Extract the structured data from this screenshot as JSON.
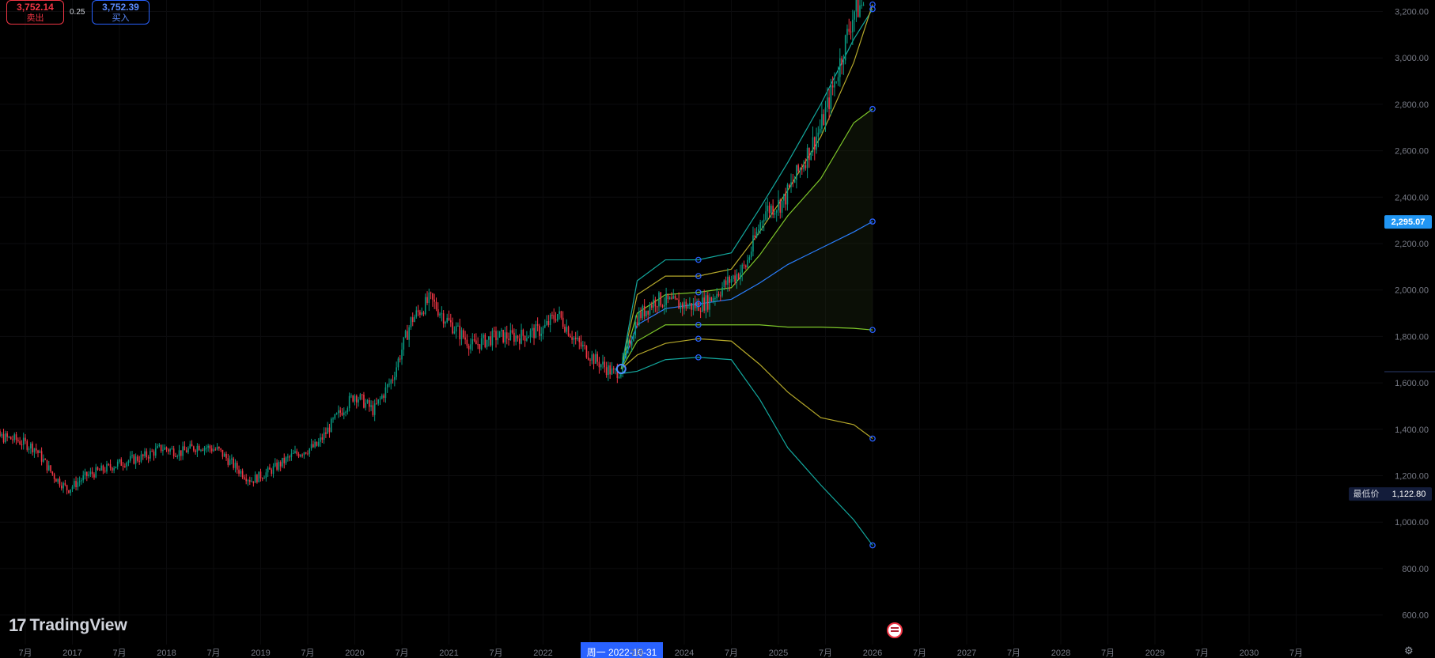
{
  "header": {
    "sell_price": "3,752.14",
    "sell_label": "卖出",
    "spread": "0.25",
    "buy_price": "3,752.39",
    "buy_label": "买入"
  },
  "branding": {
    "logo_text": "TradingView",
    "settings_icon": "gear-icon",
    "flag_icon": "us-flag-icon"
  },
  "colors": {
    "up": "#089981",
    "down": "#f23645",
    "outer_band": "#13a89e",
    "mid_band": "#b5a82a",
    "inner_band": "#7ec82a",
    "center": "#2a7fff",
    "anchor": "#2962ff",
    "label_blue": "#2196f3"
  },
  "chart_data": {
    "type": "candlestick",
    "y_axis": {
      "min": 560,
      "max": 3270,
      "ticks": [
        "3,200.00",
        "3,000.00",
        "2,800.00",
        "2,600.00",
        "2,400.00",
        "2,200.00",
        "2,000.00",
        "1,800.00",
        "1,600.00",
        "1,400.00",
        "1,200.00",
        "1,000.00",
        "800.00",
        "600.00"
      ]
    },
    "x_axis": {
      "ticks": [
        "7月",
        "2017",
        "7月",
        "2018",
        "7月",
        "2019",
        "7月",
        "2020",
        "7月",
        "2021",
        "7月",
        "2022",
        "周一 2022-10-31",
        "7月",
        "2024",
        "7月",
        "2025",
        "7月",
        "2026",
        "7月",
        "2027",
        "7月",
        "2028",
        "7月",
        "2029",
        "7月",
        "2030",
        "7月"
      ],
      "highlighted": "周一 2022-10-31"
    },
    "price_labels": {
      "current": "2,295.07",
      "low_label": "最低价",
      "low_value": "1,122.80"
    },
    "price_path": [
      [
        2016.0,
        1320
      ],
      [
        2016.2,
        1370
      ],
      [
        2016.4,
        1355
      ],
      [
        2016.6,
        1320
      ],
      [
        2016.8,
        1200
      ],
      [
        2016.95,
        1140
      ],
      [
        2017.15,
        1200
      ],
      [
        2017.35,
        1230
      ],
      [
        2017.55,
        1260
      ],
      [
        2017.75,
        1280
      ],
      [
        2017.95,
        1320
      ],
      [
        2018.15,
        1300
      ],
      [
        2018.35,
        1330
      ],
      [
        2018.55,
        1310
      ],
      [
        2018.75,
        1230
      ],
      [
        2018.9,
        1180
      ],
      [
        2019.1,
        1220
      ],
      [
        2019.35,
        1290
      ],
      [
        2019.6,
        1330
      ],
      [
        2019.8,
        1450
      ],
      [
        2020.0,
        1550
      ],
      [
        2020.2,
        1480
      ],
      [
        2020.4,
        1620
      ],
      [
        2020.6,
        1870
      ],
      [
        2020.8,
        1960
      ],
      [
        2021.0,
        1860
      ],
      [
        2021.25,
        1760
      ],
      [
        2021.5,
        1800
      ],
      [
        2021.75,
        1800
      ],
      [
        2022.0,
        1830
      ],
      [
        2022.15,
        1900
      ],
      [
        2022.35,
        1780
      ],
      [
        2022.55,
        1700
      ],
      [
        2022.75,
        1640
      ],
      [
        2022.83,
        1660
      ],
      [
        2023.0,
        1880
      ],
      [
        2023.2,
        1960
      ],
      [
        2023.4,
        1940
      ],
      [
        2023.6,
        1930
      ],
      [
        2023.75,
        1950
      ],
      [
        2023.95,
        2030
      ],
      [
        2024.15,
        2100
      ],
      [
        2024.35,
        2340
      ],
      [
        2024.55,
        2380
      ],
      [
        2024.75,
        2540
      ],
      [
        2024.95,
        2700
      ],
      [
        2025.1,
        2900
      ],
      [
        2025.3,
        3200
      ],
      [
        2025.42,
        3240
      ]
    ],
    "bands": {
      "x": [
        2022.83,
        2023.0,
        2023.3,
        2023.65,
        2024.0,
        2024.3,
        2024.6,
        2024.95,
        2025.3,
        2025.5
      ],
      "series": [
        {
          "role": "outer_upper",
          "values": [
            1660,
            2040,
            2130,
            2130,
            2160,
            2350,
            2550,
            2800,
            3080,
            3210
          ]
        },
        {
          "role": "mid_upper",
          "values": [
            1660,
            1980,
            2060,
            2060,
            2090,
            2250,
            2430,
            2660,
            2980,
            3230
          ]
        },
        {
          "role": "inner_upper",
          "values": [
            1660,
            1900,
            1980,
            1990,
            2010,
            2150,
            2320,
            2480,
            2720,
            2780
          ]
        },
        {
          "role": "center",
          "values": [
            1660,
            1850,
            1920,
            1940,
            1960,
            2030,
            2110,
            2180,
            2250,
            2295
          ]
        },
        {
          "role": "inner_lower",
          "values": [
            1660,
            1780,
            1850,
            1850,
            1850,
            1850,
            1840,
            1840,
            1835,
            1828
          ]
        },
        {
          "role": "mid_lower",
          "values": [
            1660,
            1720,
            1770,
            1790,
            1780,
            1680,
            1560,
            1450,
            1420,
            1360
          ]
        },
        {
          "role": "outer_lower",
          "values": [
            1640,
            1650,
            1700,
            1710,
            1700,
            1530,
            1320,
            1160,
            1010,
            900
          ]
        }
      ],
      "node_x": [
        2023.65,
        2024.55,
        2025.5
      ]
    }
  }
}
